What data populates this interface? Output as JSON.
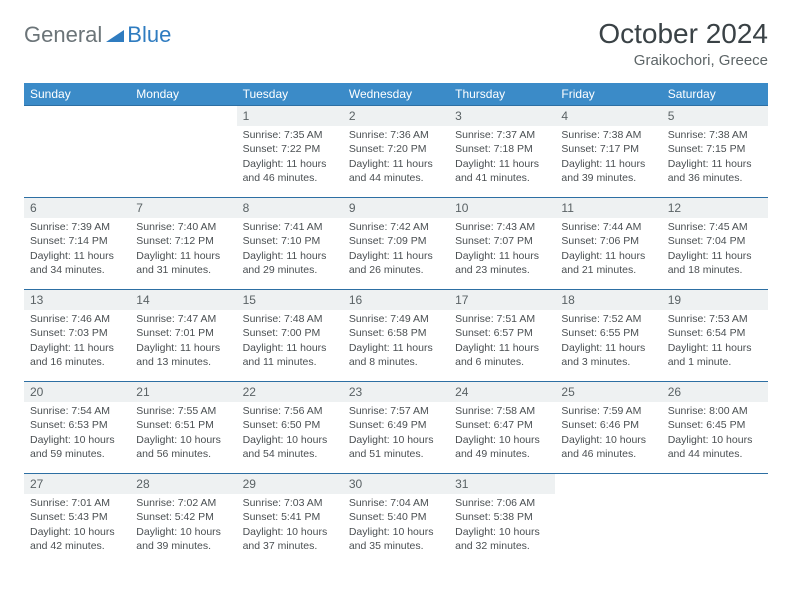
{
  "logo": {
    "part1": "General",
    "part2": "Blue"
  },
  "title": {
    "month": "October 2024",
    "location": "Graikochori, Greece"
  },
  "colors": {
    "header_bg": "#3b8bc8",
    "header_text": "#ffffff",
    "daynum_bg": "#eef1f2",
    "border": "#2d6fa3",
    "logo_gray": "#6b7478",
    "logo_blue": "#2f7cc0"
  },
  "weekdays": [
    "Sunday",
    "Monday",
    "Tuesday",
    "Wednesday",
    "Thursday",
    "Friday",
    "Saturday"
  ],
  "weeks": [
    [
      null,
      null,
      {
        "n": "1",
        "sr": "7:35 AM",
        "ss": "7:22 PM",
        "dl": "11 hours and 46 minutes."
      },
      {
        "n": "2",
        "sr": "7:36 AM",
        "ss": "7:20 PM",
        "dl": "11 hours and 44 minutes."
      },
      {
        "n": "3",
        "sr": "7:37 AM",
        "ss": "7:18 PM",
        "dl": "11 hours and 41 minutes."
      },
      {
        "n": "4",
        "sr": "7:38 AM",
        "ss": "7:17 PM",
        "dl": "11 hours and 39 minutes."
      },
      {
        "n": "5",
        "sr": "7:38 AM",
        "ss": "7:15 PM",
        "dl": "11 hours and 36 minutes."
      }
    ],
    [
      {
        "n": "6",
        "sr": "7:39 AM",
        "ss": "7:14 PM",
        "dl": "11 hours and 34 minutes."
      },
      {
        "n": "7",
        "sr": "7:40 AM",
        "ss": "7:12 PM",
        "dl": "11 hours and 31 minutes."
      },
      {
        "n": "8",
        "sr": "7:41 AM",
        "ss": "7:10 PM",
        "dl": "11 hours and 29 minutes."
      },
      {
        "n": "9",
        "sr": "7:42 AM",
        "ss": "7:09 PM",
        "dl": "11 hours and 26 minutes."
      },
      {
        "n": "10",
        "sr": "7:43 AM",
        "ss": "7:07 PM",
        "dl": "11 hours and 23 minutes."
      },
      {
        "n": "11",
        "sr": "7:44 AM",
        "ss": "7:06 PM",
        "dl": "11 hours and 21 minutes."
      },
      {
        "n": "12",
        "sr": "7:45 AM",
        "ss": "7:04 PM",
        "dl": "11 hours and 18 minutes."
      }
    ],
    [
      {
        "n": "13",
        "sr": "7:46 AM",
        "ss": "7:03 PM",
        "dl": "11 hours and 16 minutes."
      },
      {
        "n": "14",
        "sr": "7:47 AM",
        "ss": "7:01 PM",
        "dl": "11 hours and 13 minutes."
      },
      {
        "n": "15",
        "sr": "7:48 AM",
        "ss": "7:00 PM",
        "dl": "11 hours and 11 minutes."
      },
      {
        "n": "16",
        "sr": "7:49 AM",
        "ss": "6:58 PM",
        "dl": "11 hours and 8 minutes."
      },
      {
        "n": "17",
        "sr": "7:51 AM",
        "ss": "6:57 PM",
        "dl": "11 hours and 6 minutes."
      },
      {
        "n": "18",
        "sr": "7:52 AM",
        "ss": "6:55 PM",
        "dl": "11 hours and 3 minutes."
      },
      {
        "n": "19",
        "sr": "7:53 AM",
        "ss": "6:54 PM",
        "dl": "11 hours and 1 minute."
      }
    ],
    [
      {
        "n": "20",
        "sr": "7:54 AM",
        "ss": "6:53 PM",
        "dl": "10 hours and 59 minutes."
      },
      {
        "n": "21",
        "sr": "7:55 AM",
        "ss": "6:51 PM",
        "dl": "10 hours and 56 minutes."
      },
      {
        "n": "22",
        "sr": "7:56 AM",
        "ss": "6:50 PM",
        "dl": "10 hours and 54 minutes."
      },
      {
        "n": "23",
        "sr": "7:57 AM",
        "ss": "6:49 PM",
        "dl": "10 hours and 51 minutes."
      },
      {
        "n": "24",
        "sr": "7:58 AM",
        "ss": "6:47 PM",
        "dl": "10 hours and 49 minutes."
      },
      {
        "n": "25",
        "sr": "7:59 AM",
        "ss": "6:46 PM",
        "dl": "10 hours and 46 minutes."
      },
      {
        "n": "26",
        "sr": "8:00 AM",
        "ss": "6:45 PM",
        "dl": "10 hours and 44 minutes."
      }
    ],
    [
      {
        "n": "27",
        "sr": "7:01 AM",
        "ss": "5:43 PM",
        "dl": "10 hours and 42 minutes."
      },
      {
        "n": "28",
        "sr": "7:02 AM",
        "ss": "5:42 PM",
        "dl": "10 hours and 39 minutes."
      },
      {
        "n": "29",
        "sr": "7:03 AM",
        "ss": "5:41 PM",
        "dl": "10 hours and 37 minutes."
      },
      {
        "n": "30",
        "sr": "7:04 AM",
        "ss": "5:40 PM",
        "dl": "10 hours and 35 minutes."
      },
      {
        "n": "31",
        "sr": "7:06 AM",
        "ss": "5:38 PM",
        "dl": "10 hours and 32 minutes."
      },
      null,
      null
    ]
  ],
  "labels": {
    "sunrise": "Sunrise:",
    "sunset": "Sunset:",
    "daylight": "Daylight:"
  }
}
